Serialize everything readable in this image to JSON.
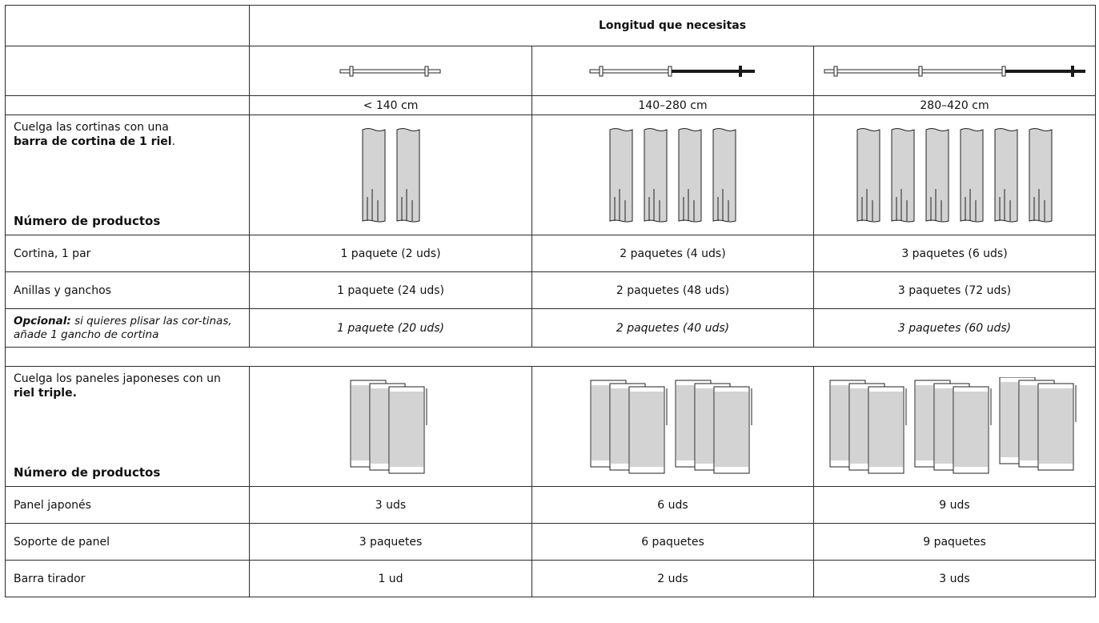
{
  "header": {
    "title": "Longitud que necesitas",
    "lengths": [
      "< 140 cm",
      "140–280 cm",
      "280–420 cm"
    ]
  },
  "section1": {
    "lead_pre": "Cuelga las cortinas con una",
    "lead_bold": "barra de cortina de 1 riel",
    "lead_post": ".",
    "count_label": "Número de productos",
    "rows": [
      {
        "label": "Cortina, 1 par",
        "values": [
          "1 paquete (2 uds)",
          "2 paquetes (4 uds)",
          "3 paquetes (6 uds)"
        ]
      },
      {
        "label": "Anillas y ganchos",
        "values": [
          "1 paquete (24 uds)",
          "2 paquetes (48 uds)",
          "3 paquetes (72 uds)"
        ]
      }
    ],
    "optional": {
      "label_bold": "Opcional:",
      "label_rest": " si quieres plisar las cor-tinas, añade 1 gancho de cortina",
      "values": [
        "1 paquete (20 uds)",
        "2 paquetes (40 uds)",
        "3 paquetes (60 uds)"
      ]
    }
  },
  "section2": {
    "lead_pre": "Cuelga los paneles japoneses con un",
    "lead_bold": "riel triple.",
    "count_label": "Número de productos",
    "rows": [
      {
        "label": "Panel japonés",
        "values": [
          "3 uds",
          "6 uds",
          "9 uds"
        ]
      },
      {
        "label": "Soporte de panel",
        "values": [
          "3 paquetes",
          "6 paquetes",
          "9 paquetes"
        ]
      },
      {
        "label": "Barra tirador",
        "values": [
          "1 ud",
          "2 uds",
          "3 uds"
        ]
      }
    ]
  },
  "colors": {
    "border": "#2b2b2b",
    "fabric": "#d3d3d3",
    "rod_dark": "#1a1a1a"
  }
}
